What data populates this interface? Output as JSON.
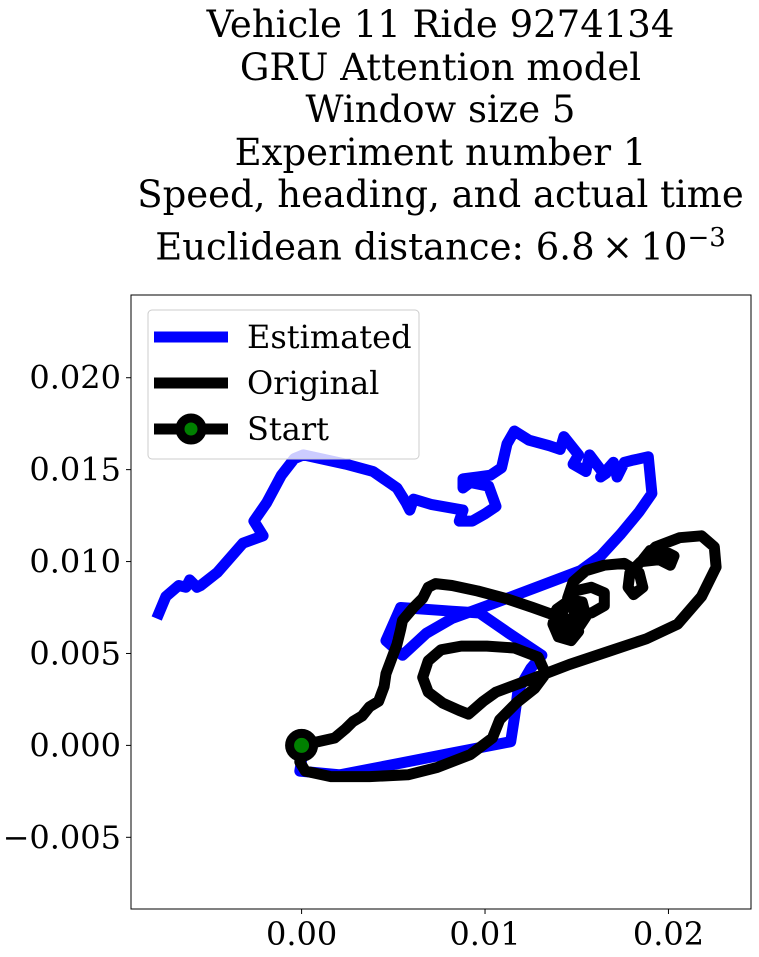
{
  "chart_data": {
    "type": "line",
    "title_lines": [
      "Vehicle 11 Ride 9274134",
      "GRU Attention model",
      "Window size 5",
      "Experiment number 1",
      "Speed, heading, and actual time"
    ],
    "title_metric_prefix": "Euclidean distance: ",
    "title_metric_value": "6.8",
    "title_metric_exponent": "−3",
    "xlabel": "",
    "ylabel": "",
    "xlim": [
      -0.0093,
      0.0245
    ],
    "ylim": [
      -0.0089,
      0.0245
    ],
    "xticks": [
      0.0,
      0.01,
      0.02
    ],
    "xtick_labels": [
      "0.00",
      "0.01",
      "0.02"
    ],
    "yticks": [
      -0.005,
      0.0,
      0.005,
      0.01,
      0.015,
      0.02
    ],
    "ytick_labels": [
      "−0.005",
      "0.000",
      "0.005",
      "0.010",
      "0.015",
      "0.020"
    ],
    "legend_position": "upper-left",
    "series": [
      {
        "name": "Estimated",
        "color": "#0000ff",
        "points": [
          [
            -0.0079,
            0.0069
          ],
          [
            -0.0074,
            0.0081
          ],
          [
            -0.0067,
            0.0087
          ],
          [
            -0.0063,
            0.0086
          ],
          [
            -0.0061,
            0.009
          ],
          [
            -0.0059,
            0.0088
          ],
          [
            -0.0057,
            0.0086
          ],
          [
            -0.0055,
            0.0087
          ],
          [
            -0.0046,
            0.0094
          ],
          [
            -0.0032,
            0.011
          ],
          [
            -0.0021,
            0.0114
          ],
          [
            -0.0026,
            0.0122
          ],
          [
            -0.0019,
            0.0132
          ],
          [
            -0.0011,
            0.0147
          ],
          [
            -0.0004,
            0.0156
          ],
          [
            0.0001,
            0.0158
          ],
          [
            0.0024,
            0.0153
          ],
          [
            0.0039,
            0.0149
          ],
          [
            0.0052,
            0.014
          ],
          [
            0.0057,
            0.0132
          ],
          [
            0.0059,
            0.0128
          ],
          [
            0.0061,
            0.0134
          ],
          [
            0.0071,
            0.0131
          ],
          [
            0.0088,
            0.0128
          ],
          [
            0.0086,
            0.0122
          ],
          [
            0.0093,
            0.0122
          ],
          [
            0.01,
            0.0126
          ],
          [
            0.0106,
            0.013
          ],
          [
            0.0102,
            0.0141
          ],
          [
            0.0092,
            0.0143
          ],
          [
            0.0088,
            0.014
          ],
          [
            0.0088,
            0.0145
          ],
          [
            0.0096,
            0.0146
          ],
          [
            0.0103,
            0.0147
          ],
          [
            0.0109,
            0.0151
          ],
          [
            0.0112,
            0.0164
          ],
          [
            0.0116,
            0.0171
          ],
          [
            0.0124,
            0.0166
          ],
          [
            0.0135,
            0.0163
          ],
          [
            0.0141,
            0.0161
          ],
          [
            0.0143,
            0.0168
          ],
          [
            0.0151,
            0.0158
          ],
          [
            0.0148,
            0.0153
          ],
          [
            0.0155,
            0.0149
          ],
          [
            0.0157,
            0.0158
          ],
          [
            0.0163,
            0.015
          ],
          [
            0.0166,
            0.0148
          ],
          [
            0.0163,
            0.0146
          ],
          [
            0.017,
            0.0154
          ],
          [
            0.0172,
            0.0146
          ],
          [
            0.0176,
            0.0154
          ],
          [
            0.018,
            0.0155
          ],
          [
            0.0189,
            0.0157
          ],
          [
            0.0191,
            0.0137
          ],
          [
            0.0184,
            0.0127
          ],
          [
            0.0174,
            0.0115
          ],
          [
            0.0163,
            0.0103
          ],
          [
            0.0152,
            0.0095
          ],
          [
            0.0128,
            0.0086
          ],
          [
            0.0104,
            0.0077
          ],
          [
            0.0082,
            0.0069
          ],
          [
            0.0068,
            0.0061
          ],
          [
            0.0055,
            0.0049
          ],
          [
            0.0046,
            0.0057
          ],
          [
            0.0054,
            0.0075
          ],
          [
            0.0082,
            0.0073
          ],
          [
            0.0097,
            0.0072
          ],
          [
            0.0113,
            0.0061
          ],
          [
            0.0131,
            0.0049
          ],
          [
            0.0125,
            0.0042
          ],
          [
            0.0118,
            0.003
          ],
          [
            0.0117,
            0.0022
          ],
          [
            0.0116,
            0.0015
          ],
          [
            0.0114,
            0.0002
          ],
          [
            0.0083,
            -0.0004
          ],
          [
            0.0052,
            -0.001
          ],
          [
            0.0021,
            -0.0016
          ],
          [
            -0.0001,
            -0.0014
          ],
          [
            0.0001,
            -0.0002
          ]
        ]
      },
      {
        "name": "Original",
        "color": "#000000",
        "points": [
          [
            0.0,
            0.0
          ],
          [
            0.0018,
            0.0004
          ],
          [
            0.0024,
            0.0009
          ],
          [
            0.0028,
            0.0013
          ],
          [
            0.0033,
            0.0016
          ],
          [
            0.0037,
            0.0021
          ],
          [
            0.0042,
            0.0024
          ],
          [
            0.0045,
            0.0032
          ],
          [
            0.0046,
            0.0039
          ],
          [
            0.0049,
            0.0047
          ],
          [
            0.0052,
            0.0055
          ],
          [
            0.0054,
            0.0063
          ],
          [
            0.0055,
            0.0068
          ],
          [
            0.0061,
            0.0075
          ],
          [
            0.0066,
            0.008
          ],
          [
            0.0069,
            0.0086
          ],
          [
            0.0073,
            0.0088
          ],
          [
            0.0082,
            0.0087
          ],
          [
            0.0096,
            0.0084
          ],
          [
            0.0111,
            0.008
          ],
          [
            0.0126,
            0.0075
          ],
          [
            0.014,
            0.007
          ],
          [
            0.0148,
            0.0068
          ],
          [
            0.0151,
            0.0062
          ],
          [
            0.0147,
            0.0057
          ],
          [
            0.014,
            0.0059
          ],
          [
            0.0137,
            0.0066
          ],
          [
            0.0139,
            0.0074
          ],
          [
            0.0146,
            0.0079
          ],
          [
            0.0153,
            0.0078
          ],
          [
            0.0155,
            0.007
          ],
          [
            0.0151,
            0.0064
          ],
          [
            0.0145,
            0.0062
          ],
          [
            0.0141,
            0.0068
          ],
          [
            0.0143,
            0.0075
          ],
          [
            0.0149,
            0.0084
          ],
          [
            0.0158,
            0.0086
          ],
          [
            0.0165,
            0.0083
          ],
          [
            0.0165,
            0.0076
          ],
          [
            0.0158,
            0.0072
          ],
          [
            0.0149,
            0.0072
          ],
          [
            0.0145,
            0.008
          ],
          [
            0.0148,
            0.0089
          ],
          [
            0.0155,
            0.0095
          ],
          [
            0.0165,
            0.0098
          ],
          [
            0.0176,
            0.0099
          ],
          [
            0.0184,
            0.0094
          ],
          [
            0.0186,
            0.0086
          ],
          [
            0.0181,
            0.0082
          ],
          [
            0.0178,
            0.0086
          ],
          [
            0.0179,
            0.0094
          ],
          [
            0.0185,
            0.01
          ],
          [
            0.0195,
            0.0101
          ],
          [
            0.0201,
            0.0098
          ],
          [
            0.0203,
            0.0103
          ],
          [
            0.0197,
            0.0106
          ],
          [
            0.019,
            0.0106
          ],
          [
            0.0186,
            0.0101
          ],
          [
            0.0193,
            0.0108
          ],
          [
            0.0206,
            0.0113
          ],
          [
            0.0218,
            0.0114
          ],
          [
            0.0225,
            0.0108
          ],
          [
            0.0226,
            0.0097
          ],
          [
            0.0218,
            0.0081
          ],
          [
            0.0205,
            0.0066
          ],
          [
            0.0188,
            0.0058
          ],
          [
            0.0167,
            0.0051
          ],
          [
            0.0146,
            0.0044
          ],
          [
            0.0125,
            0.0036
          ],
          [
            0.0106,
            0.0029
          ],
          [
            0.0099,
            0.0024
          ],
          [
            0.0091,
            0.0017
          ],
          [
            0.0086,
            0.0019
          ],
          [
            0.0077,
            0.0023
          ],
          [
            0.0069,
            0.0029
          ],
          [
            0.0066,
            0.0037
          ],
          [
            0.0069,
            0.0046
          ],
          [
            0.0076,
            0.0052
          ],
          [
            0.0087,
            0.0054
          ],
          [
            0.0101,
            0.0054
          ],
          [
            0.0116,
            0.0053
          ],
          [
            0.0129,
            0.0048
          ],
          [
            0.0133,
            0.0039
          ],
          [
            0.0127,
            0.0031
          ],
          [
            0.0117,
            0.0023
          ],
          [
            0.0108,
            0.0014
          ],
          [
            0.0104,
            0.0004
          ],
          [
            0.0092,
            -0.0005
          ],
          [
            0.0074,
            -0.0012
          ],
          [
            0.0058,
            -0.0016
          ],
          [
            0.0037,
            -0.0017
          ],
          [
            0.0016,
            -0.0017
          ],
          [
            0.0002,
            -0.0014
          ],
          [
            -0.0001,
            -0.0009
          ],
          [
            0.0,
            0.0
          ]
        ]
      }
    ],
    "start_point": {
      "name": "Start",
      "x": 0.0,
      "y": 0.0,
      "edge_color": "#000000",
      "face_color": "#008000"
    }
  }
}
